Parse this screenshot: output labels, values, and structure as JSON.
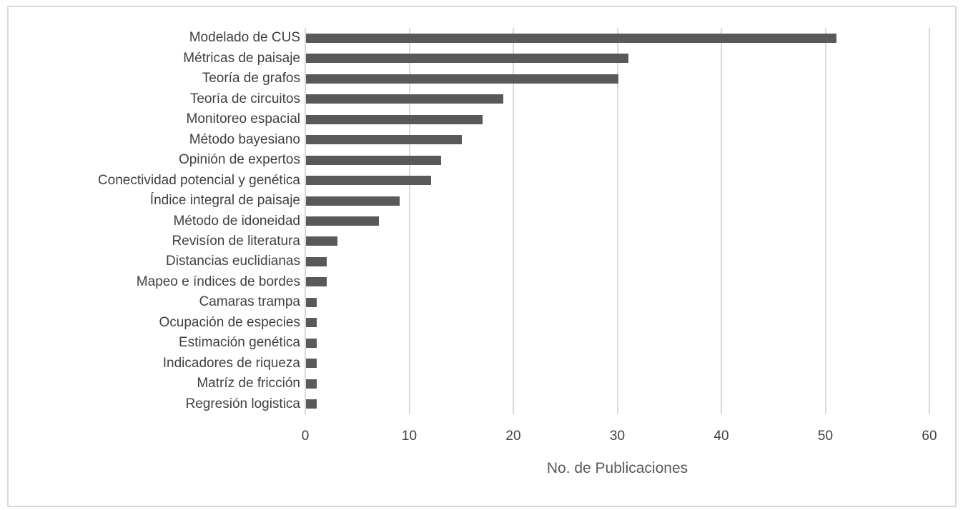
{
  "figure": {
    "background": "#ffffff",
    "border_color": "#d9d9d9"
  },
  "chart_data": {
    "type": "bar",
    "orientation": "horizontal",
    "title": "",
    "xlabel": "No. de Publicaciones",
    "ylabel": "",
    "categories": [
      "Modelado de CUS",
      "Métricas de paisaje",
      "Teoría de grafos",
      "Teoría de circuitos",
      "Monitoreo espacial",
      "Método bayesiano",
      "Opinión de expertos",
      "Conectividad potencial y genética",
      "Índice integral de paisaje",
      "Método de idoneidad",
      "Revisíon de literatura",
      "Distancias euclidianas",
      "Mapeo e índices de bordes",
      "Camaras trampa",
      "Ocupación de especies",
      "Estimación genética",
      "Indicadores de riqueza",
      "Matríz de fricción",
      "Regresión logistica"
    ],
    "values": [
      51,
      31,
      30,
      19,
      17,
      15,
      13,
      12,
      9,
      7,
      3,
      2,
      2,
      1,
      1,
      1,
      1,
      1,
      1
    ],
    "xlim": [
      0,
      60
    ],
    "xticks": [
      0,
      10,
      20,
      30,
      40,
      50,
      60
    ],
    "grid": "vertical-only",
    "legend": "none",
    "bar_color": "#595959",
    "gridline_color": "#d9d9d9",
    "tick_text_color": "#404040",
    "axis_title_color": "#595959"
  }
}
